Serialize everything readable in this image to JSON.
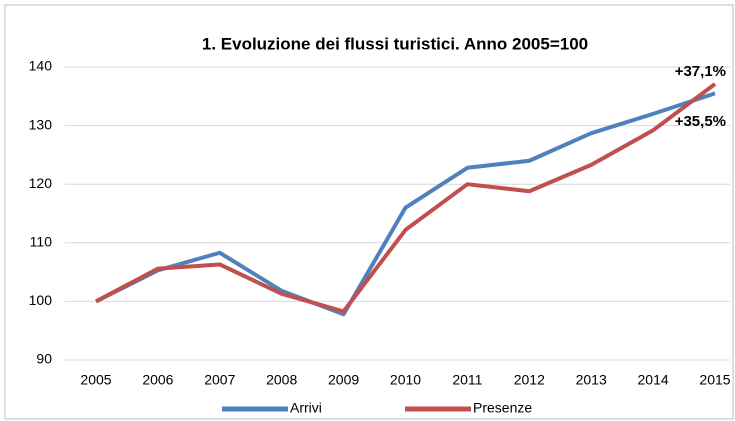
{
  "chart_data": {
    "type": "line",
    "title": "1. Evoluzione dei flussi turistici. Anno 2005=100",
    "categories": [
      "2005",
      "2006",
      "2007",
      "2008",
      "2009",
      "2010",
      "2011",
      "2012",
      "2013",
      "2014",
      "2015"
    ],
    "series": [
      {
        "name": "Arrivi",
        "color": "#4f81bd",
        "values": [
          100,
          105.3,
          108.3,
          101.8,
          97.8,
          116,
          122.8,
          124,
          128.7,
          132,
          135.5
        ]
      },
      {
        "name": "Presenze",
        "color": "#c0504d",
        "values": [
          100,
          105.6,
          106.3,
          101.3,
          98.3,
          112.2,
          120,
          118.8,
          123.3,
          129.2,
          137.1
        ]
      }
    ],
    "annotations": [
      {
        "text": "+37,1%"
      },
      {
        "text": "+35,5%"
      }
    ],
    "ylim": [
      90,
      140
    ],
    "yticks": [
      90,
      100,
      110,
      120,
      130,
      140
    ],
    "grid": true
  }
}
